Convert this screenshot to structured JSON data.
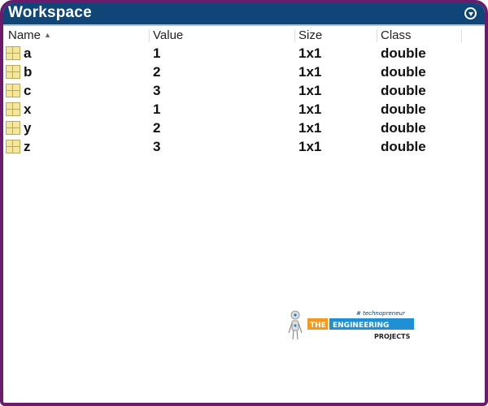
{
  "window": {
    "title": "Workspace",
    "menu_icon": "circle-down-arrow-icon"
  },
  "columns": [
    {
      "label": "Name",
      "sort": "ascending"
    },
    {
      "label": "Value"
    },
    {
      "label": "Size"
    },
    {
      "label": "Class"
    }
  ],
  "sort_indicator": "▲",
  "rows": [
    {
      "name": "a",
      "value": "1",
      "size": "1x1",
      "class": "double"
    },
    {
      "name": "b",
      "value": "2",
      "size": "1x1",
      "class": "double"
    },
    {
      "name": "c",
      "value": "3",
      "size": "1x1",
      "class": "double"
    },
    {
      "name": "x",
      "value": "1",
      "size": "1x1",
      "class": "double"
    },
    {
      "name": "y",
      "value": "2",
      "size": "1x1",
      "class": "double"
    },
    {
      "name": "z",
      "value": "3",
      "size": "1x1",
      "class": "double"
    }
  ],
  "watermark": {
    "tagline": "# technopreneur",
    "the": "THE",
    "engineering": "ENGINEERING",
    "projects": "PROJECTS"
  },
  "colors": {
    "border": "#6b1b6b",
    "titlebar": "#0f4677",
    "icon": "#f5e79a"
  }
}
